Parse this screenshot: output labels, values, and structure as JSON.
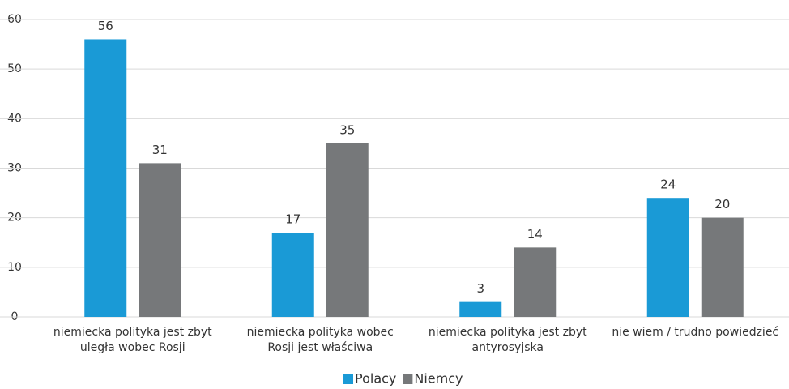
{
  "chart_data": {
    "type": "bar",
    "categories": [
      "niemiecka polityka jest zbyt uległa wobec Rosji",
      "niemiecka polityka wobec Rosji jest właściwa",
      "niemiecka polityka jest zbyt antyrosyjska",
      "nie wiem / trudno powiedzieć"
    ],
    "series": [
      {
        "name": "Polacy",
        "color": "#1a9ad6",
        "values": [
          56,
          17,
          3,
          24
        ]
      },
      {
        "name": "Niemcy",
        "color": "#76787a",
        "values": [
          31,
          35,
          14,
          20
        ]
      }
    ],
    "ylim": [
      0,
      60
    ],
    "yticks": [
      0,
      10,
      20,
      30,
      40,
      50,
      60
    ],
    "grid": true,
    "legend": "bottom"
  }
}
